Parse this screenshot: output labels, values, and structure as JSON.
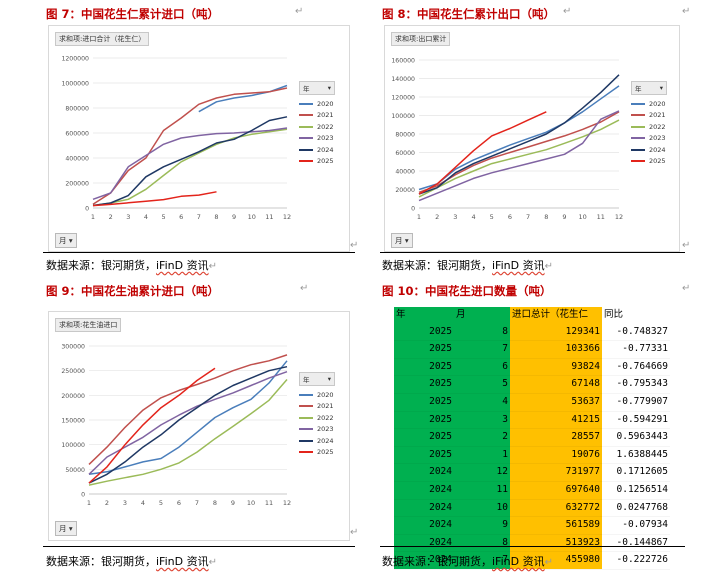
{
  "figures": {
    "fig7": {
      "title": "图 7：中国花生仁累计进口（吨）",
      "field": "求和项:进口合计（花生仁）",
      "month_button": "月 ▾"
    },
    "fig8": {
      "title": "图 8：中国花生仁累计出口（吨）",
      "field": "求和项:出口累计",
      "month_button": "月 ▾"
    },
    "fig9": {
      "title": "图 9：中国花生油累计进口（吨）",
      "field": "求和项:花生油进口",
      "month_button": "月 ▾"
    },
    "fig10": {
      "title": "图 10：中国花生进口数量（吨）"
    }
  },
  "legend_header": "年",
  "source": {
    "prefix": "数据来源：银河期货，",
    "ifind": "iFinD 资讯"
  },
  "paragraph_mark": "↵",
  "series_colors": {
    "2020": "#4a7ebb",
    "2021": "#c0504d",
    "2022": "#9bbb59",
    "2023": "#8064a2",
    "2024": "#1f3864",
    "2025": "#e3241b"
  },
  "chart_data": [
    {
      "id": "fig7",
      "type": "line",
      "x": [
        1,
        2,
        3,
        4,
        5,
        6,
        7,
        8,
        9,
        10,
        11,
        12
      ],
      "y_ticks": [
        "0",
        "200000",
        "400000",
        "600000",
        "800000",
        "1000000",
        "1200000"
      ],
      "ylim": [
        0,
        1200000
      ],
      "legend": "right",
      "series": [
        {
          "name": "2020",
          "values": [
            null,
            null,
            null,
            null,
            null,
            null,
            770000,
            850000,
            880000,
            900000,
            930000,
            980000
          ]
        },
        {
          "name": "2021",
          "values": [
            30000,
            120000,
            300000,
            400000,
            620000,
            720000,
            830000,
            880000,
            910000,
            920000,
            930000,
            960000
          ]
        },
        {
          "name": "2022",
          "values": [
            20000,
            40000,
            70000,
            150000,
            260000,
            370000,
            440000,
            510000,
            560000,
            590000,
            610000,
            630000
          ]
        },
        {
          "name": "2023",
          "values": [
            70000,
            120000,
            330000,
            420000,
            510000,
            560000,
            580000,
            595000,
            600000,
            610000,
            620000,
            640000
          ]
        },
        {
          "name": "2024",
          "values": [
            20000,
            40000,
            100000,
            250000,
            330000,
            390000,
            450000,
            520000,
            550000,
            620000,
            700000,
            730000
          ]
        },
        {
          "name": "2025",
          "values": [
            19076,
            28557,
            41215,
            53637,
            67148,
            93824,
            103366,
            129341,
            null,
            null,
            null,
            null
          ]
        }
      ]
    },
    {
      "id": "fig8",
      "type": "line",
      "x": [
        1,
        2,
        3,
        4,
        5,
        6,
        7,
        8,
        9,
        10,
        11,
        12
      ],
      "y_ticks": [
        "0",
        "20000",
        "40000",
        "60000",
        "80000",
        "100000",
        "120000",
        "140000",
        "160000"
      ],
      "ylim": [
        0,
        160000
      ],
      "legend": "right",
      "series": [
        {
          "name": "2020",
          "values": [
            20000,
            26000,
            42000,
            52000,
            60000,
            68000,
            75000,
            82000,
            92000,
            104000,
            118000,
            132000
          ]
        },
        {
          "name": "2021",
          "values": [
            17000,
            24000,
            36000,
            46000,
            54000,
            60000,
            66000,
            72000,
            78000,
            85000,
            93000,
            104000
          ]
        },
        {
          "name": "2022",
          "values": [
            12000,
            22000,
            32000,
            40000,
            48000,
            53000,
            58000,
            63000,
            70000,
            77000,
            85000,
            95000
          ]
        },
        {
          "name": "2023",
          "values": [
            8000,
            16000,
            24000,
            32000,
            38000,
            43000,
            48000,
            53000,
            58000,
            70000,
            96000,
            105000
          ]
        },
        {
          "name": "2024",
          "values": [
            15000,
            22000,
            38000,
            48000,
            56000,
            64000,
            72000,
            80000,
            92000,
            108000,
            125000,
            144000
          ]
        },
        {
          "name": "2025",
          "values": [
            15000,
            26000,
            44000,
            62000,
            78000,
            86000,
            95000,
            104000,
            null,
            null,
            null,
            null
          ]
        }
      ]
    },
    {
      "id": "fig9",
      "type": "line",
      "x": [
        1,
        2,
        3,
        4,
        5,
        6,
        7,
        8,
        9,
        10,
        11,
        12
      ],
      "y_ticks": [
        "0",
        "50000",
        "100000",
        "150000",
        "200000",
        "250000",
        "300000"
      ],
      "ylim": [
        0,
        300000
      ],
      "legend": "right",
      "series": [
        {
          "name": "2020",
          "values": [
            40000,
            45000,
            55000,
            65000,
            72000,
            95000,
            125000,
            155000,
            175000,
            192000,
            225000,
            270000
          ]
        },
        {
          "name": "2021",
          "values": [
            60000,
            95000,
            135000,
            170000,
            195000,
            210000,
            222000,
            235000,
            250000,
            262000,
            270000,
            282000
          ]
        },
        {
          "name": "2022",
          "values": [
            18000,
            26000,
            33000,
            40000,
            50000,
            63000,
            85000,
            112000,
            137000,
            163000,
            190000,
            232000
          ]
        },
        {
          "name": "2023",
          "values": [
            40000,
            75000,
            95000,
            115000,
            140000,
            160000,
            178000,
            192000,
            205000,
            220000,
            235000,
            248000
          ]
        },
        {
          "name": "2024",
          "values": [
            22000,
            40000,
            65000,
            95000,
            120000,
            150000,
            175000,
            200000,
            220000,
            235000,
            250000,
            258000
          ]
        },
        {
          "name": "2025",
          "values": [
            22000,
            55000,
            100000,
            140000,
            175000,
            200000,
            230000,
            255000,
            null,
            null,
            null,
            null
          ]
        }
      ]
    },
    {
      "id": "fig10",
      "type": "table",
      "columns": [
        "年",
        "月",
        "进口总计（花生仁",
        "同比"
      ],
      "rows": [
        [
          "2025",
          "8",
          "129341",
          "-0.748327"
        ],
        [
          "2025",
          "7",
          "103366",
          "-0.77331"
        ],
        [
          "2025",
          "6",
          "93824",
          "-0.764669"
        ],
        [
          "2025",
          "5",
          "67148",
          "-0.795343"
        ],
        [
          "2025",
          "4",
          "53637",
          "-0.779907"
        ],
        [
          "2025",
          "3",
          "41215",
          "-0.594291"
        ],
        [
          "2025",
          "2",
          "28557",
          "0.5963443"
        ],
        [
          "2025",
          "1",
          "19076",
          "1.6388445"
        ],
        [
          "2024",
          "12",
          "731977",
          "0.1712605"
        ],
        [
          "2024",
          "11",
          "697640",
          "0.1256514"
        ],
        [
          "2024",
          "10",
          "632772",
          "0.0247768"
        ],
        [
          "2024",
          "9",
          "561589",
          "-0.07934"
        ],
        [
          "2024",
          "8",
          "513923",
          "-0.144867"
        ],
        [
          "2024",
          "7",
          "455980",
          "-0.222726"
        ]
      ]
    }
  ]
}
